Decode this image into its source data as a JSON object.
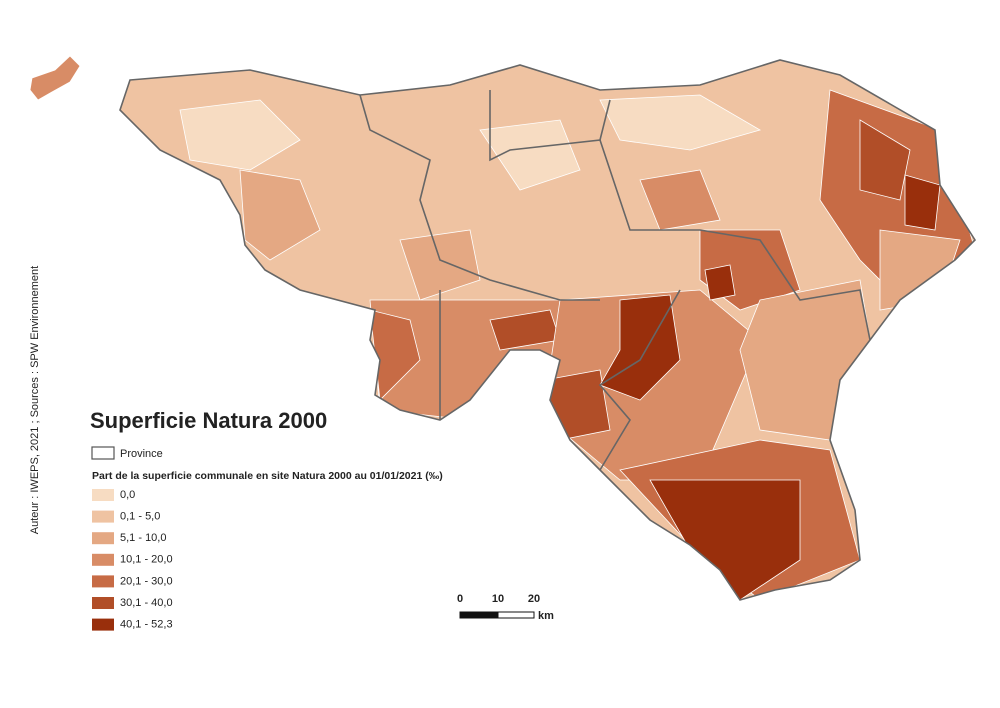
{
  "title": "Superficie Natura 2000",
  "province_label": "Province",
  "legend": {
    "title": "Part de la superficie communale en site Natura 2000 au 01/01/2021 (‰)",
    "classes": [
      {
        "label": "0,0",
        "color": "#f7dcc2"
      },
      {
        "label": "0,1 - 5,0",
        "color": "#efc3a2"
      },
      {
        "label": "5,1 - 10,0",
        "color": "#e4a883"
      },
      {
        "label": "10,1 - 20,0",
        "color": "#d88c66"
      },
      {
        "label": "20,1 - 30,0",
        "color": "#c76b45"
      },
      {
        "label": "30,1 - 40,0",
        "color": "#b14e28"
      },
      {
        "label": "40,1 - 52,3",
        "color": "#992f0c"
      }
    ]
  },
  "scale": {
    "labels": [
      "0",
      "10",
      "20"
    ],
    "unit": "km"
  },
  "credit": "Auteur : IWEPS, 2021 ; Sources : SPW Environnement"
}
